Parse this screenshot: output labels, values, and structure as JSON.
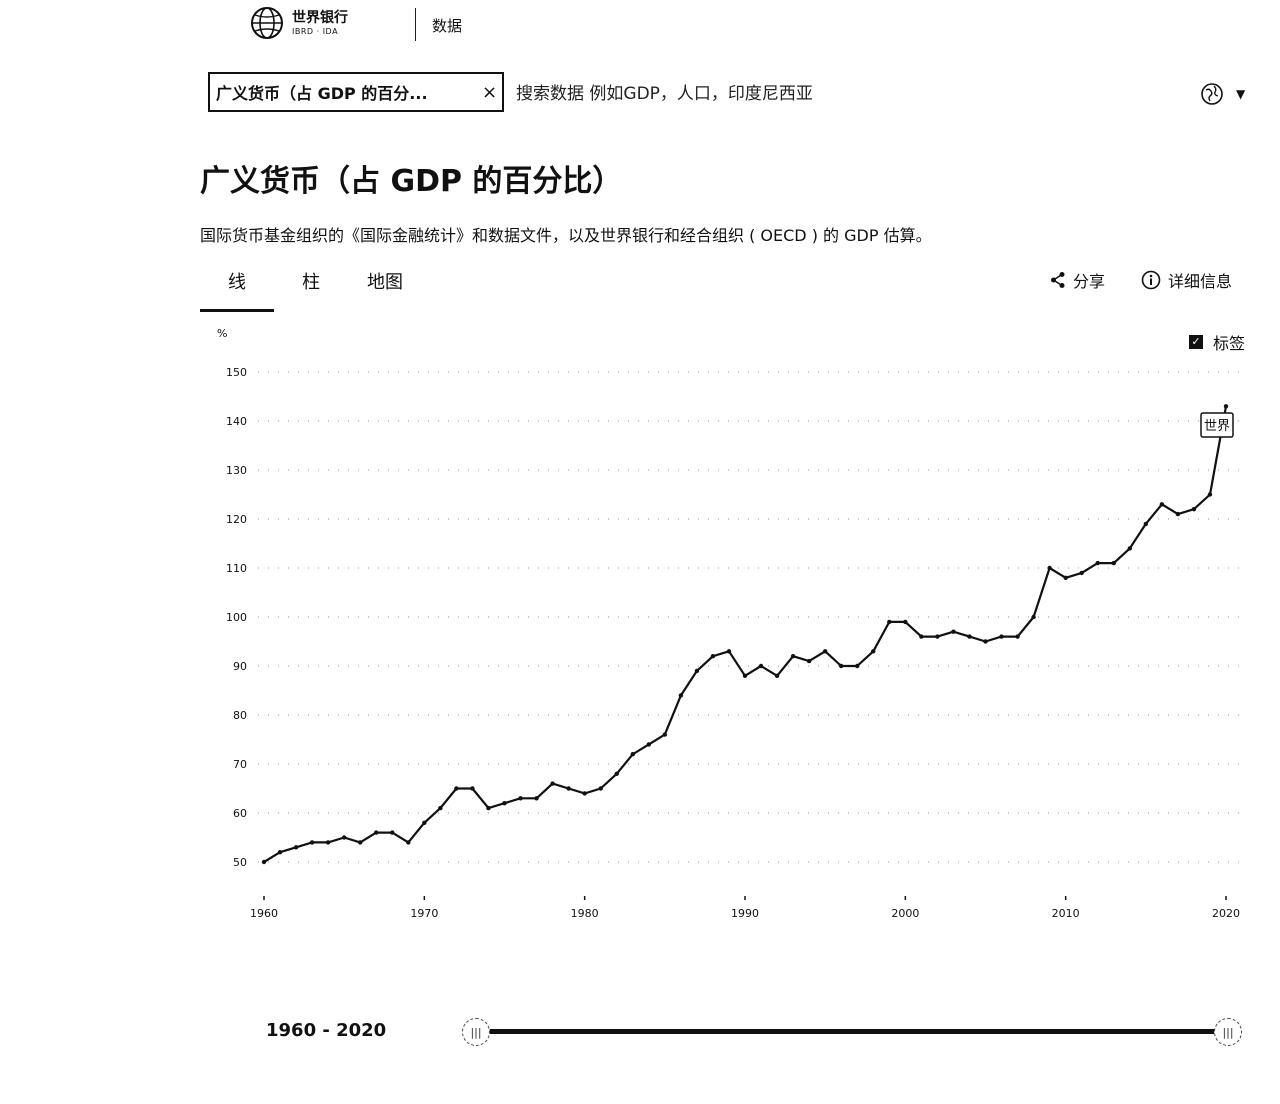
{
  "header": {
    "logo_main": "世界银行",
    "logo_sub": "IBRD · IDA",
    "nav_data": "数据"
  },
  "search": {
    "chip_label": "广义货币（占 GDP 的百分...",
    "placeholder": "搜索数据 例如GDP，人口，印度尼西亚"
  },
  "page": {
    "title": "广义货币（占 GDP 的百分比）",
    "subtitle": "国际货币基金组织的《国际金融统计》和数据文件，以及世界银行和经合组织 ( OECD ) 的 GDP 估算。"
  },
  "tabs": [
    {
      "label": "线",
      "active": true
    },
    {
      "label": "柱",
      "active": false
    },
    {
      "label": "地图",
      "active": false
    }
  ],
  "actions": {
    "share": "分享",
    "details": "详细信息"
  },
  "labels_toggle": {
    "label": "标签",
    "checked": true
  },
  "chart_data": {
    "type": "line",
    "ylabel": "%",
    "ylim": [
      45,
      155
    ],
    "xlim": [
      1960,
      2020
    ],
    "yticks": [
      50,
      60,
      70,
      80,
      90,
      100,
      110,
      120,
      130,
      140,
      150
    ],
    "xticks": [
      1960,
      1970,
      1980,
      1990,
      2000,
      2010,
      2020
    ],
    "series": [
      {
        "name": "世界",
        "x": [
          1960,
          1961,
          1962,
          1963,
          1964,
          1965,
          1966,
          1967,
          1968,
          1969,
          1970,
          1971,
          1972,
          1973,
          1974,
          1975,
          1976,
          1977,
          1978,
          1979,
          1980,
          1981,
          1982,
          1983,
          1984,
          1985,
          1986,
          1987,
          1988,
          1989,
          1990,
          1991,
          1992,
          1993,
          1994,
          1995,
          1996,
          1997,
          1998,
          1999,
          2000,
          2001,
          2002,
          2003,
          2004,
          2005,
          2006,
          2007,
          2008,
          2009,
          2010,
          2011,
          2012,
          2013,
          2014,
          2015,
          2016,
          2017,
          2018,
          2019,
          2020
        ],
        "y": [
          50,
          52,
          53,
          54,
          54,
          55,
          54,
          56,
          56,
          54,
          58,
          61,
          65,
          65,
          61,
          62,
          63,
          63,
          66,
          65,
          64,
          65,
          68,
          72,
          74,
          76,
          84,
          89,
          92,
          93,
          88,
          90,
          88,
          92,
          91,
          93,
          90,
          90,
          93,
          99,
          99,
          96,
          96,
          97,
          96,
          95,
          96,
          96,
          100,
          110,
          108,
          109,
          111,
          111,
          114,
          119,
          123,
          121,
          122,
          125,
          143
        ]
      }
    ],
    "gridlines": true,
    "series_label": "世界"
  },
  "range": {
    "label": "1960 - 2020"
  }
}
